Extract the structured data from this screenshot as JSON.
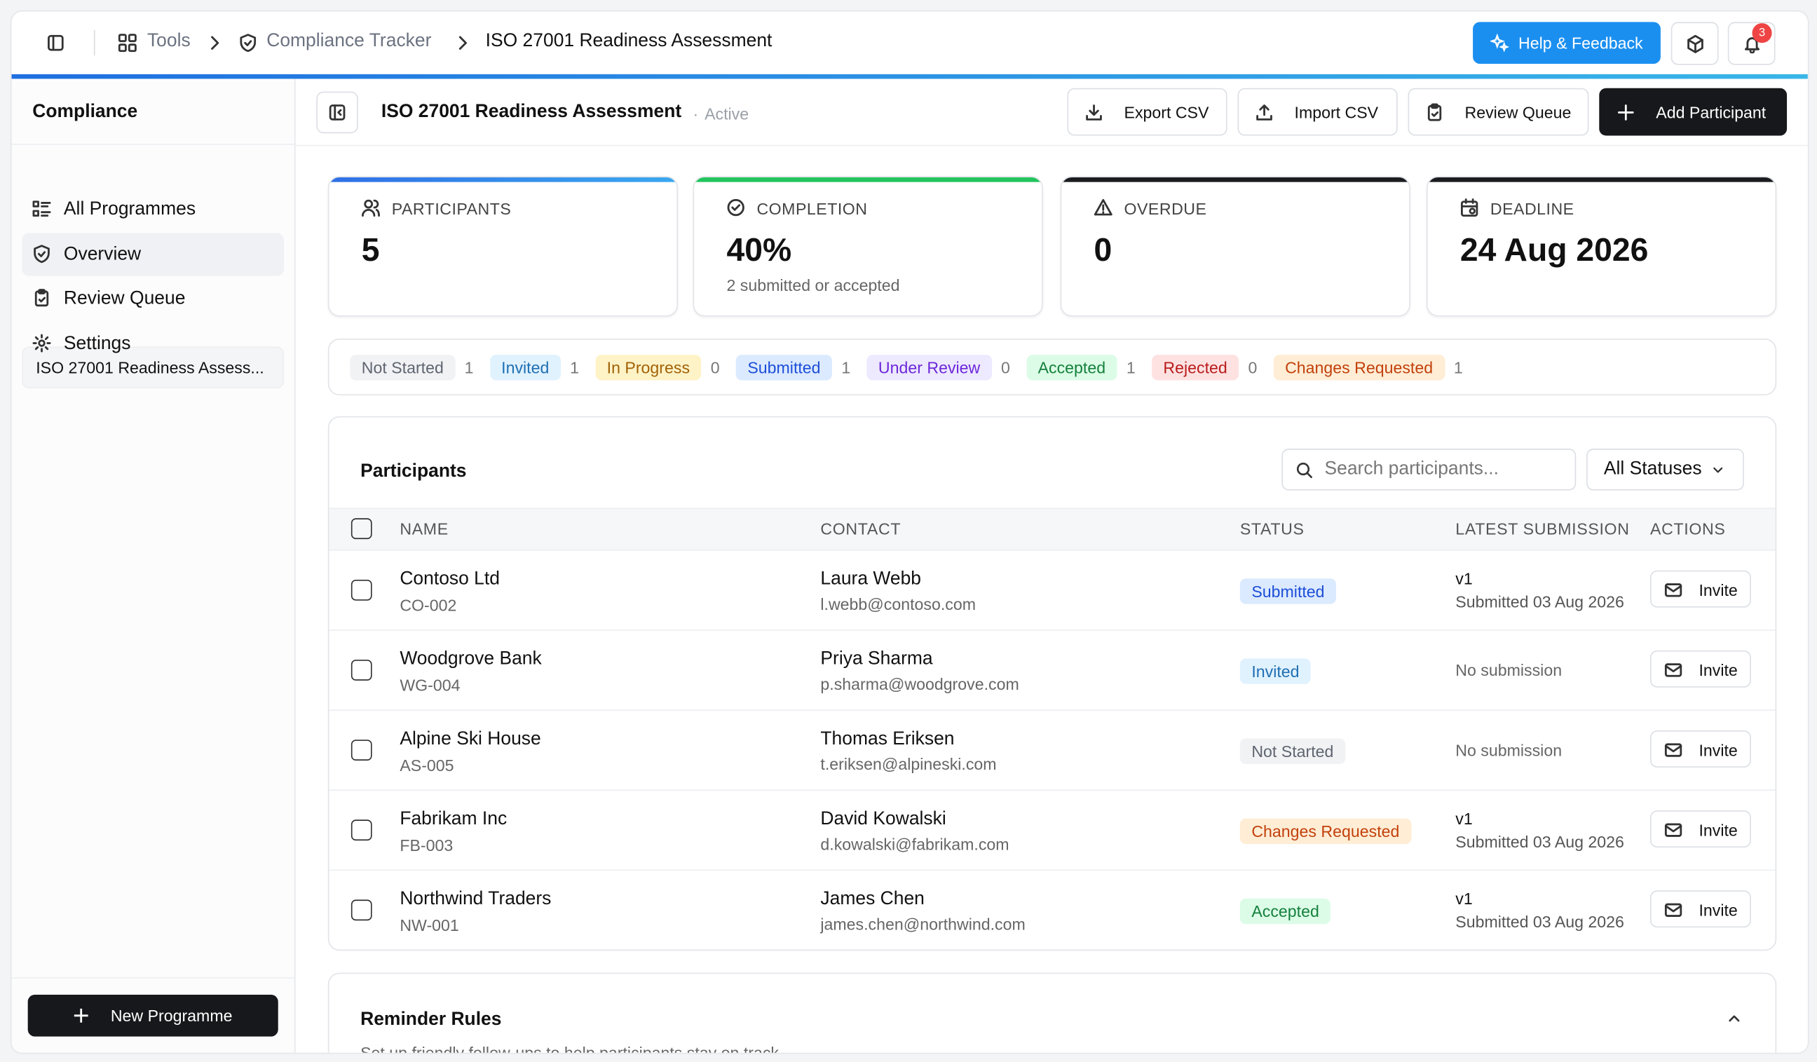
{
  "breadcrumb": [
    "Tools",
    "Compliance Tracker",
    "ISO 27001 Readiness Assessment"
  ],
  "help_button": "Help & Feedback",
  "notification_count": 3,
  "sidebar": {
    "title": "Compliance",
    "nav": [
      "All Programmes",
      "Overview",
      "Review Queue",
      "Settings"
    ],
    "programme": "ISO 27001 Readiness Assess...",
    "new_button": "New Programme"
  },
  "header": {
    "title": "ISO 27001 Readiness Assessment",
    "status": "Active",
    "actions": [
      "Export CSV",
      "Import CSV",
      "Review Queue",
      "Add Participant"
    ]
  },
  "stats": [
    {
      "label": "PARTICIPANTS",
      "value": 5
    },
    {
      "label": "COMPLETION",
      "value": "40%",
      "note": "2 submitted or accepted"
    },
    {
      "label": "OVERDUE",
      "value": 0
    },
    {
      "label": "DEADLINE",
      "value": "24 Aug 2026"
    }
  ],
  "status_counts": [
    {
      "label": "Not Started",
      "count": 1,
      "bg": "#f1f2f4",
      "fg": "#5f6570"
    },
    {
      "label": "Invited",
      "count": 1,
      "bg": "#e0f2fe",
      "fg": "#1f6fb2"
    },
    {
      "label": "In Progress",
      "count": 0,
      "bg": "#fef3c7",
      "fg": "#a16207"
    },
    {
      "label": "Submitted",
      "count": 1,
      "bg": "#dbeafe",
      "fg": "#1d4ed8"
    },
    {
      "label": "Under Review",
      "count": 0,
      "bg": "#ede9fe",
      "fg": "#6d28d9"
    },
    {
      "label": "Accepted",
      "count": 1,
      "bg": "#dcfce7",
      "fg": "#15803d"
    },
    {
      "label": "Rejected",
      "count": 0,
      "bg": "#fee2e2",
      "fg": "#b91c1c"
    },
    {
      "label": "Changes Requested",
      "count": 1,
      "bg": "#ffedd5",
      "fg": "#c2410c"
    }
  ],
  "participants": {
    "title": "Participants",
    "search_placeholder": "Search participants...",
    "filter": "All Statuses",
    "columns": [
      "NAME",
      "CONTACT",
      "STATUS",
      "LATEST SUBMISSION",
      "ACTIONS"
    ],
    "rows": [
      {
        "name": "Contoso Ltd",
        "code": "CO-002",
        "contact": "Laura Webb",
        "email": "l.webb@contoso.com",
        "status": "Submitted",
        "version": "v1",
        "submitted": "Submitted 03 Aug 2026",
        "action": "Invite"
      },
      {
        "name": "Woodgrove Bank",
        "code": "WG-004",
        "contact": "Priya Sharma",
        "email": "p.sharma@woodgrove.com",
        "status": "Invited",
        "submitted": "No submission",
        "action": "Invite"
      },
      {
        "name": "Alpine Ski House",
        "code": "AS-005",
        "contact": "Thomas Eriksen",
        "email": "t.eriksen@alpineski.com",
        "status": "Not Started",
        "submitted": "No submission",
        "action": "Invite"
      },
      {
        "name": "Fabrikam Inc",
        "code": "FB-003",
        "contact": "David Kowalski",
        "email": "d.kowalski@fabrikam.com",
        "status": "Changes Requested",
        "version": "v1",
        "submitted": "Submitted 03 Aug 2026",
        "action": "Invite"
      },
      {
        "name": "Northwind Traders",
        "code": "NW-001",
        "contact": "James Chen",
        "email": "james.chen@northwind.com",
        "status": "Accepted",
        "version": "v1",
        "submitted": "Submitted 03 Aug 2026",
        "action": "Invite"
      }
    ]
  },
  "reminders": {
    "title": "Reminder Rules",
    "description": "Set up friendly follow-ups to help participants stay on track."
  }
}
